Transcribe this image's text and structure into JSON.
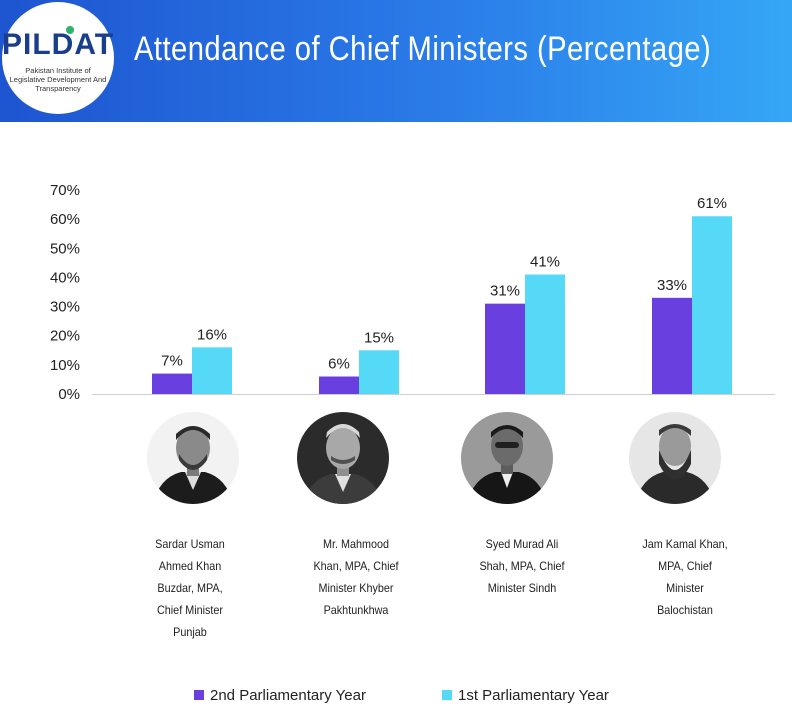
{
  "header": {
    "logo_text": "PILDAT",
    "logo_tagline": "Pakistan Institute of Legislative Development And Transparency",
    "title": "Attendance  of Chief Ministers  (Percentage)"
  },
  "chart_data": {
    "type": "bar",
    "y_ticks": [
      "0%",
      "10%",
      "20%",
      "30%",
      "40%",
      "50%",
      "60%",
      "70%"
    ],
    "ylim": [
      0,
      70
    ],
    "categories": [
      "Sardar Usman Ahmed Khan Buzdar, MPA, Chief Minister Punjab",
      "Mr. Mahmood Khan, MPA, Chief Minister Khyber Pakhtunkhwa",
      "Syed Murad Ali Shah, MPA, Chief Minister Sindh",
      "Jam Kamal Khan, MPA, Chief Minister Balochistan"
    ],
    "series": [
      {
        "name": "2nd Parliamentary Year",
        "color": "#6a3fe0",
        "values": [
          7,
          6,
          31,
          33
        ],
        "labels": [
          "7%",
          "6%",
          "31%",
          "33%"
        ]
      },
      {
        "name": "1st Parliamentary Year",
        "color": "#56d8f7",
        "values": [
          16,
          15,
          41,
          61
        ],
        "labels": [
          "16%",
          "15%",
          "41%",
          "61%"
        ]
      }
    ]
  },
  "people": [
    {
      "caption_lines": [
        "Sardar Usman",
        "Ahmed Khan",
        "Buzdar, MPA,",
        "Chief Minister",
        "Punjab"
      ]
    },
    {
      "caption_lines": [
        "Mr. Mahmood",
        "Khan, MPA, Chief",
        "Minister Khyber",
        "Pakhtunkhwa"
      ]
    },
    {
      "caption_lines": [
        "Syed Murad Ali",
        "Shah, MPA, Chief",
        "Minister Sindh"
      ]
    },
    {
      "caption_lines": [
        "Jam Kamal Khan,",
        "MPA, Chief",
        "Minister",
        "Balochistan"
      ]
    }
  ],
  "legend": {
    "items": [
      {
        "label": "2nd Parliamentary Year",
        "color": "#6a3fe0"
      },
      {
        "label": "1st Parliamentary Year",
        "color": "#56d8f7"
      }
    ]
  }
}
